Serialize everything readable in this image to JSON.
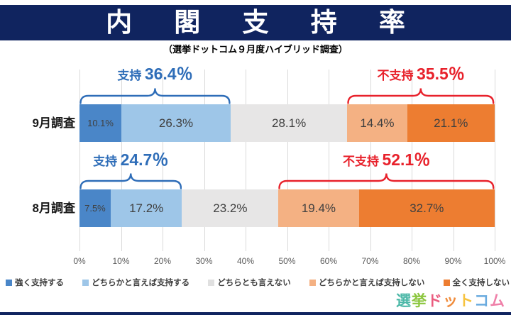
{
  "header": {
    "title": "内閣支持率",
    "subtitle": "（選挙ドットコム９月度ハイブリッド調査）"
  },
  "chart_data": {
    "type": "bar",
    "variant": "horizontal-stacked",
    "categories": [
      "9月調査",
      "8月調査"
    ],
    "series": [
      {
        "name": "強く支持する",
        "color": "#4a86c8",
        "values": [
          10.1,
          7.5
        ]
      },
      {
        "name": "どちらかと言えば支持する",
        "color": "#9ec6e8",
        "values": [
          26.3,
          17.2
        ]
      },
      {
        "name": "どちらとも言えない",
        "color": "#e7e6e6",
        "values": [
          28.1,
          23.2
        ]
      },
      {
        "name": "どちらかと言えば支持しない",
        "color": "#f4b183",
        "values": [
          14.4,
          19.4
        ]
      },
      {
        "name": "全く支持しない",
        "color": "#ed7d31",
        "values": [
          21.1,
          32.7
        ]
      }
    ],
    "value_label_suffix": "%",
    "xlim": [
      0,
      100
    ],
    "x_ticks": [
      "0%",
      "10%",
      "20%",
      "30%",
      "40%",
      "50%",
      "60%",
      "70%",
      "80%",
      "90%",
      "100%"
    ],
    "grid": true,
    "legend_position": "bottom",
    "annotations": [
      {
        "row": 0,
        "kind": "support",
        "prefix": "支持",
        "value": "36.4％",
        "from": 0,
        "to": 36.4,
        "color": "#2e6db8"
      },
      {
        "row": 0,
        "kind": "oppose",
        "prefix": "不支持",
        "value": "35.5％",
        "from": 64.5,
        "to": 100,
        "color": "#e8212b"
      },
      {
        "row": 1,
        "kind": "support",
        "prefix": "支持",
        "value": "24.7％",
        "from": 0,
        "to": 24.7,
        "color": "#2e6db8"
      },
      {
        "row": 1,
        "kind": "oppose",
        "prefix": "不支持",
        "value": "52.1％",
        "from": 47.9,
        "to": 100,
        "color": "#e8212b"
      }
    ]
  },
  "legend": {
    "items": [
      {
        "label": "強く支持する",
        "color": "#4a86c8"
      },
      {
        "label": "どちらかと言えば支持する",
        "color": "#9ec6e8"
      },
      {
        "label": "どちらとも言えない",
        "color": "#e0e0e0"
      },
      {
        "label": "どちらかと言えば支持しない",
        "color": "#f4b183"
      },
      {
        "label": "全く支持しない",
        "color": "#ed7d31"
      }
    ]
  },
  "footer": {
    "logo_text": "選挙ドットコム",
    "logo_chars": [
      {
        "ch": "選",
        "color": "#4db8a8"
      },
      {
        "ch": "挙",
        "color": "#8cc63f"
      },
      {
        "ch": "ド",
        "color": "#ea5c7f"
      },
      {
        "ch": "ッ",
        "color": "#f08c3c"
      },
      {
        "ch": "ト",
        "color": "#f7c33f"
      },
      {
        "ch": "コ",
        "color": "#6aabdf"
      },
      {
        "ch": "ム",
        "color": "#ef7fa8"
      }
    ]
  },
  "theme": {
    "navy": "#10245f",
    "grid_color": "#dadada",
    "axis_text_color": "#595959",
    "bar_label_color": "#404040"
  }
}
